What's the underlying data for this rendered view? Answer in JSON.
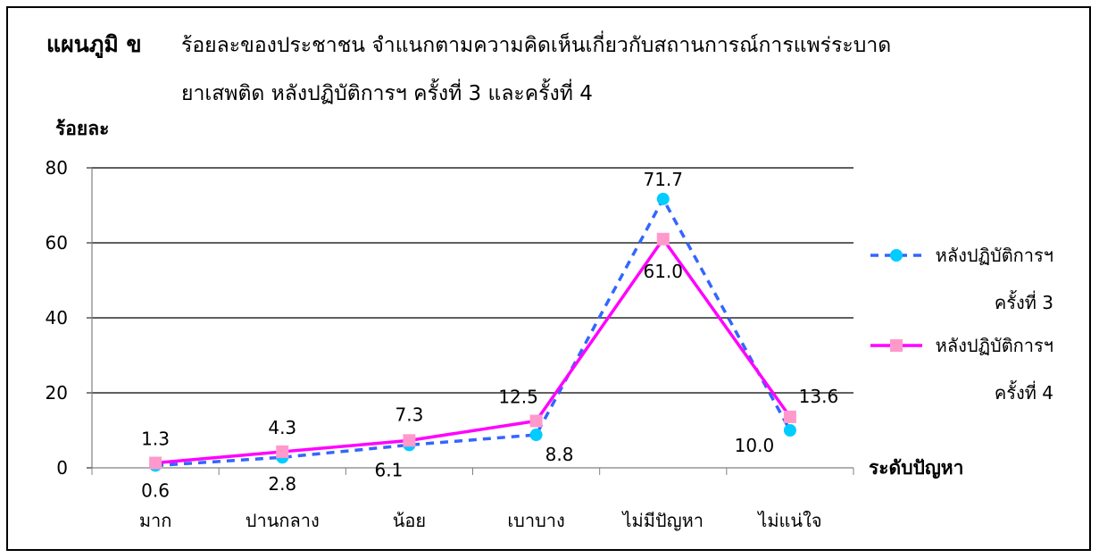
{
  "chart_data": {
    "type": "line",
    "title_label": "แผนภูมิ ข",
    "title_line1": "ร้อยละของประชาชน จำแนกตามความคิดเห็นเกี่ยวกับสถานการณ์การแพร่ระบาด",
    "title_line2": "ยาเสพติด หลังปฏิบัติการฯ ครั้งที่ 3 และครั้งที่ 4",
    "ylabel": "ร้อยละ",
    "xlabel": "ระดับปัญหา",
    "categories": [
      "มาก",
      "ปานกลาง",
      "น้อย",
      "เบาบาง",
      "ไม่มีปัญหา",
      "ไม่แน่ใจ"
    ],
    "ylim": [
      0,
      80
    ],
    "yticks": [
      0,
      20,
      40,
      60,
      80
    ],
    "grid": true,
    "legend_position": "right",
    "series": [
      {
        "name_line1": "หลังปฏิบัติการฯ",
        "name_line2": "ครั้งที่ 3",
        "values": [
          0.6,
          2.8,
          6.1,
          8.8,
          71.7,
          10.0
        ],
        "labels": [
          "0.6",
          "2.8",
          "6.1",
          "8.8",
          "71.7",
          "10.0"
        ],
        "color": "#3366ff",
        "marker_color": "#00ccff",
        "style": "dashed"
      },
      {
        "name_line1": "หลังปฏิบัติการฯ",
        "name_line2": "ครั้งที่ 4",
        "values": [
          1.3,
          4.3,
          7.3,
          12.5,
          61.0,
          13.6
        ],
        "labels": [
          "1.3",
          "4.3",
          "7.3",
          "12.5",
          "61.0",
          "13.6"
        ],
        "color": "#ff00ff",
        "marker_color": "#ff99cc",
        "style": "solid"
      }
    ]
  }
}
